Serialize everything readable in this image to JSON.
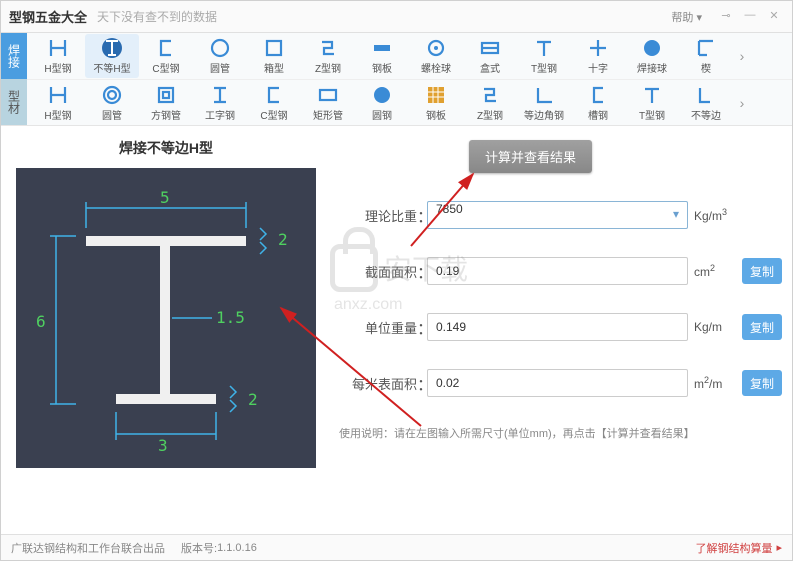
{
  "titlebar": {
    "title": "型钢五金大全",
    "subtitle": "天下没有查不到的数据",
    "help": "帮助 ▾"
  },
  "side_tabs": {
    "weld": "焊接",
    "profile": "型材"
  },
  "toolbar_row1": [
    {
      "label": "H型钢",
      "icon": "h",
      "color": "#3a8bd6"
    },
    {
      "label": "不等H型",
      "icon": "h-uneq",
      "color": "#3a8bd6",
      "selected": true
    },
    {
      "label": "C型钢",
      "icon": "c",
      "color": "#3a8bd6"
    },
    {
      "label": "圆管",
      "icon": "circle",
      "color": "#3a8bd6"
    },
    {
      "label": "箱型",
      "icon": "box",
      "color": "#3a8bd6"
    },
    {
      "label": "Z型钢",
      "icon": "z",
      "color": "#3a8bd6"
    },
    {
      "label": "钢板",
      "icon": "plate",
      "color": "#3a8bd6"
    },
    {
      "label": "螺栓球",
      "icon": "bolt",
      "color": "#3a8bd6"
    },
    {
      "label": "盒式",
      "icon": "box2",
      "color": "#3a8bd6"
    },
    {
      "label": "T型钢",
      "icon": "t",
      "color": "#3a8bd6"
    },
    {
      "label": "十字",
      "icon": "cross",
      "color": "#3a8bd6"
    },
    {
      "label": "焊接球",
      "icon": "sphere",
      "color": "#3a8bd6"
    },
    {
      "label": "楔",
      "icon": "wedge",
      "color": "#3a8bd6"
    }
  ],
  "toolbar_row2": [
    {
      "label": "H型钢",
      "icon": "h",
      "color": "#3a8bd6"
    },
    {
      "label": "圆管",
      "icon": "ring",
      "color": "#3a8bd6"
    },
    {
      "label": "方钢管",
      "icon": "sq",
      "color": "#3a8bd6"
    },
    {
      "label": "工字钢",
      "icon": "i",
      "color": "#3a8bd6"
    },
    {
      "label": "C型钢",
      "icon": "c",
      "color": "#3a8bd6"
    },
    {
      "label": "矩形管",
      "icon": "rect",
      "color": "#3a8bd6"
    },
    {
      "label": "圆钢",
      "icon": "solid",
      "color": "#3a8bd6"
    },
    {
      "label": "钢板",
      "icon": "grid",
      "color": "#3a8bd6"
    },
    {
      "label": "Z型钢",
      "icon": "z",
      "color": "#3a8bd6"
    },
    {
      "label": "等边角钢",
      "icon": "angle",
      "color": "#3a8bd6"
    },
    {
      "label": "槽钢",
      "icon": "channel",
      "color": "#3a8bd6"
    },
    {
      "label": "T型钢",
      "icon": "t",
      "color": "#3a8bd6"
    },
    {
      "label": "不等边",
      "icon": "angle2",
      "color": "#3a8bd6"
    }
  ],
  "panel_title": "焊接不等边H型",
  "diagram": {
    "bg": "#3a4050",
    "beam_color": "#f0f0f0",
    "dim_line_color": "#3fb3e8",
    "dim_text_color": "#4fd060",
    "dims": {
      "top_width": "5",
      "bottom_width": "3",
      "height": "6",
      "web": "1.5",
      "top_flange": "2",
      "bottom_flange": "2"
    }
  },
  "calc_button": "计算并查看结果",
  "form": {
    "density": {
      "label": "理论比重",
      "value": "7850",
      "unit_html": "Kg/m³"
    },
    "area": {
      "label": "截面面积",
      "value": "0.19",
      "unit_html": "cm²",
      "copy": "复制"
    },
    "unit_weight": {
      "label": "单位重量",
      "value": "0.149",
      "unit_html": "Kg/m",
      "copy": "复制"
    },
    "surface": {
      "label": "每米表面积",
      "value": "0.02",
      "unit_html": "m²/m",
      "copy": "复制"
    }
  },
  "hint": "使用说明：请在左图输入所需尺寸(单位mm)，再点击【计算并查看结果】",
  "status": {
    "left": "广联达钢结构和工作台联合出品",
    "version_label": "版本号:",
    "version": "1.1.0.16",
    "link": "了解钢结构算量"
  },
  "watermark": {
    "text": "安下载",
    "url": "anxz.com"
  }
}
